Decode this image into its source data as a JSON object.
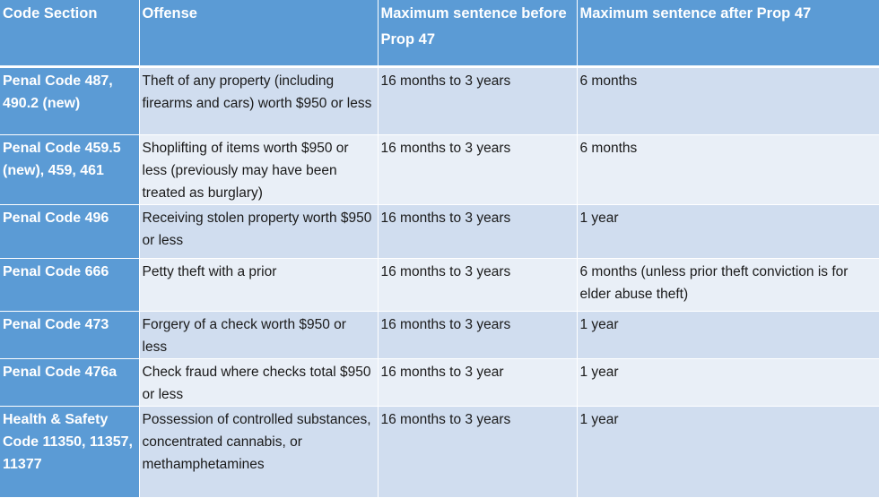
{
  "headers": [
    "Code Section",
    "Offense",
    "Maximum sentence before Prop 47",
    "Maximum sentence after Prop 47"
  ],
  "rows": [
    {
      "code": "Penal Code 487, 490.2 (new)",
      "offense": "Theft of any property (including firearms and cars) worth $950 or less",
      "before": "16 months to 3 years",
      "after": "6 months"
    },
    {
      "code": "Penal Code 459.5 (new), 459, 461",
      "offense": "Shoplifting of items worth $950 or less (previously may have been treated as burglary)",
      "before": "16 months to 3 years",
      "after": "6 months"
    },
    {
      "code": "Penal Code 496",
      "offense": "Receiving stolen property worth $950 or less",
      "before": "16 months to 3 years",
      "after": "1 year"
    },
    {
      "code": "Penal Code 666",
      "offense": "Petty theft with a prior",
      "before": "16 months to 3 years",
      "after": "6 months (unless prior theft conviction is for elder abuse theft)"
    },
    {
      "code": "Penal Code 473",
      "offense": "Forgery of a check worth $950 or less",
      "before": "16 months to 3 years",
      "after": "1 year"
    },
    {
      "code": "Penal Code 476a",
      "offense": "Check fraud where checks total $950 or less",
      "before": "16 months to 3 year",
      "after": "1 year"
    },
    {
      "code": "Health & Safety Code 11350, 11357, 11377",
      "offense": "Possession of controlled substances, concentrated cannabis, or methamphetamines",
      "before": "16 months to 3 years",
      "after": "1 year"
    }
  ],
  "colors": {
    "header": "#5b9bd5",
    "row_odd": "#d0ddef",
    "row_even": "#e9eff7"
  }
}
